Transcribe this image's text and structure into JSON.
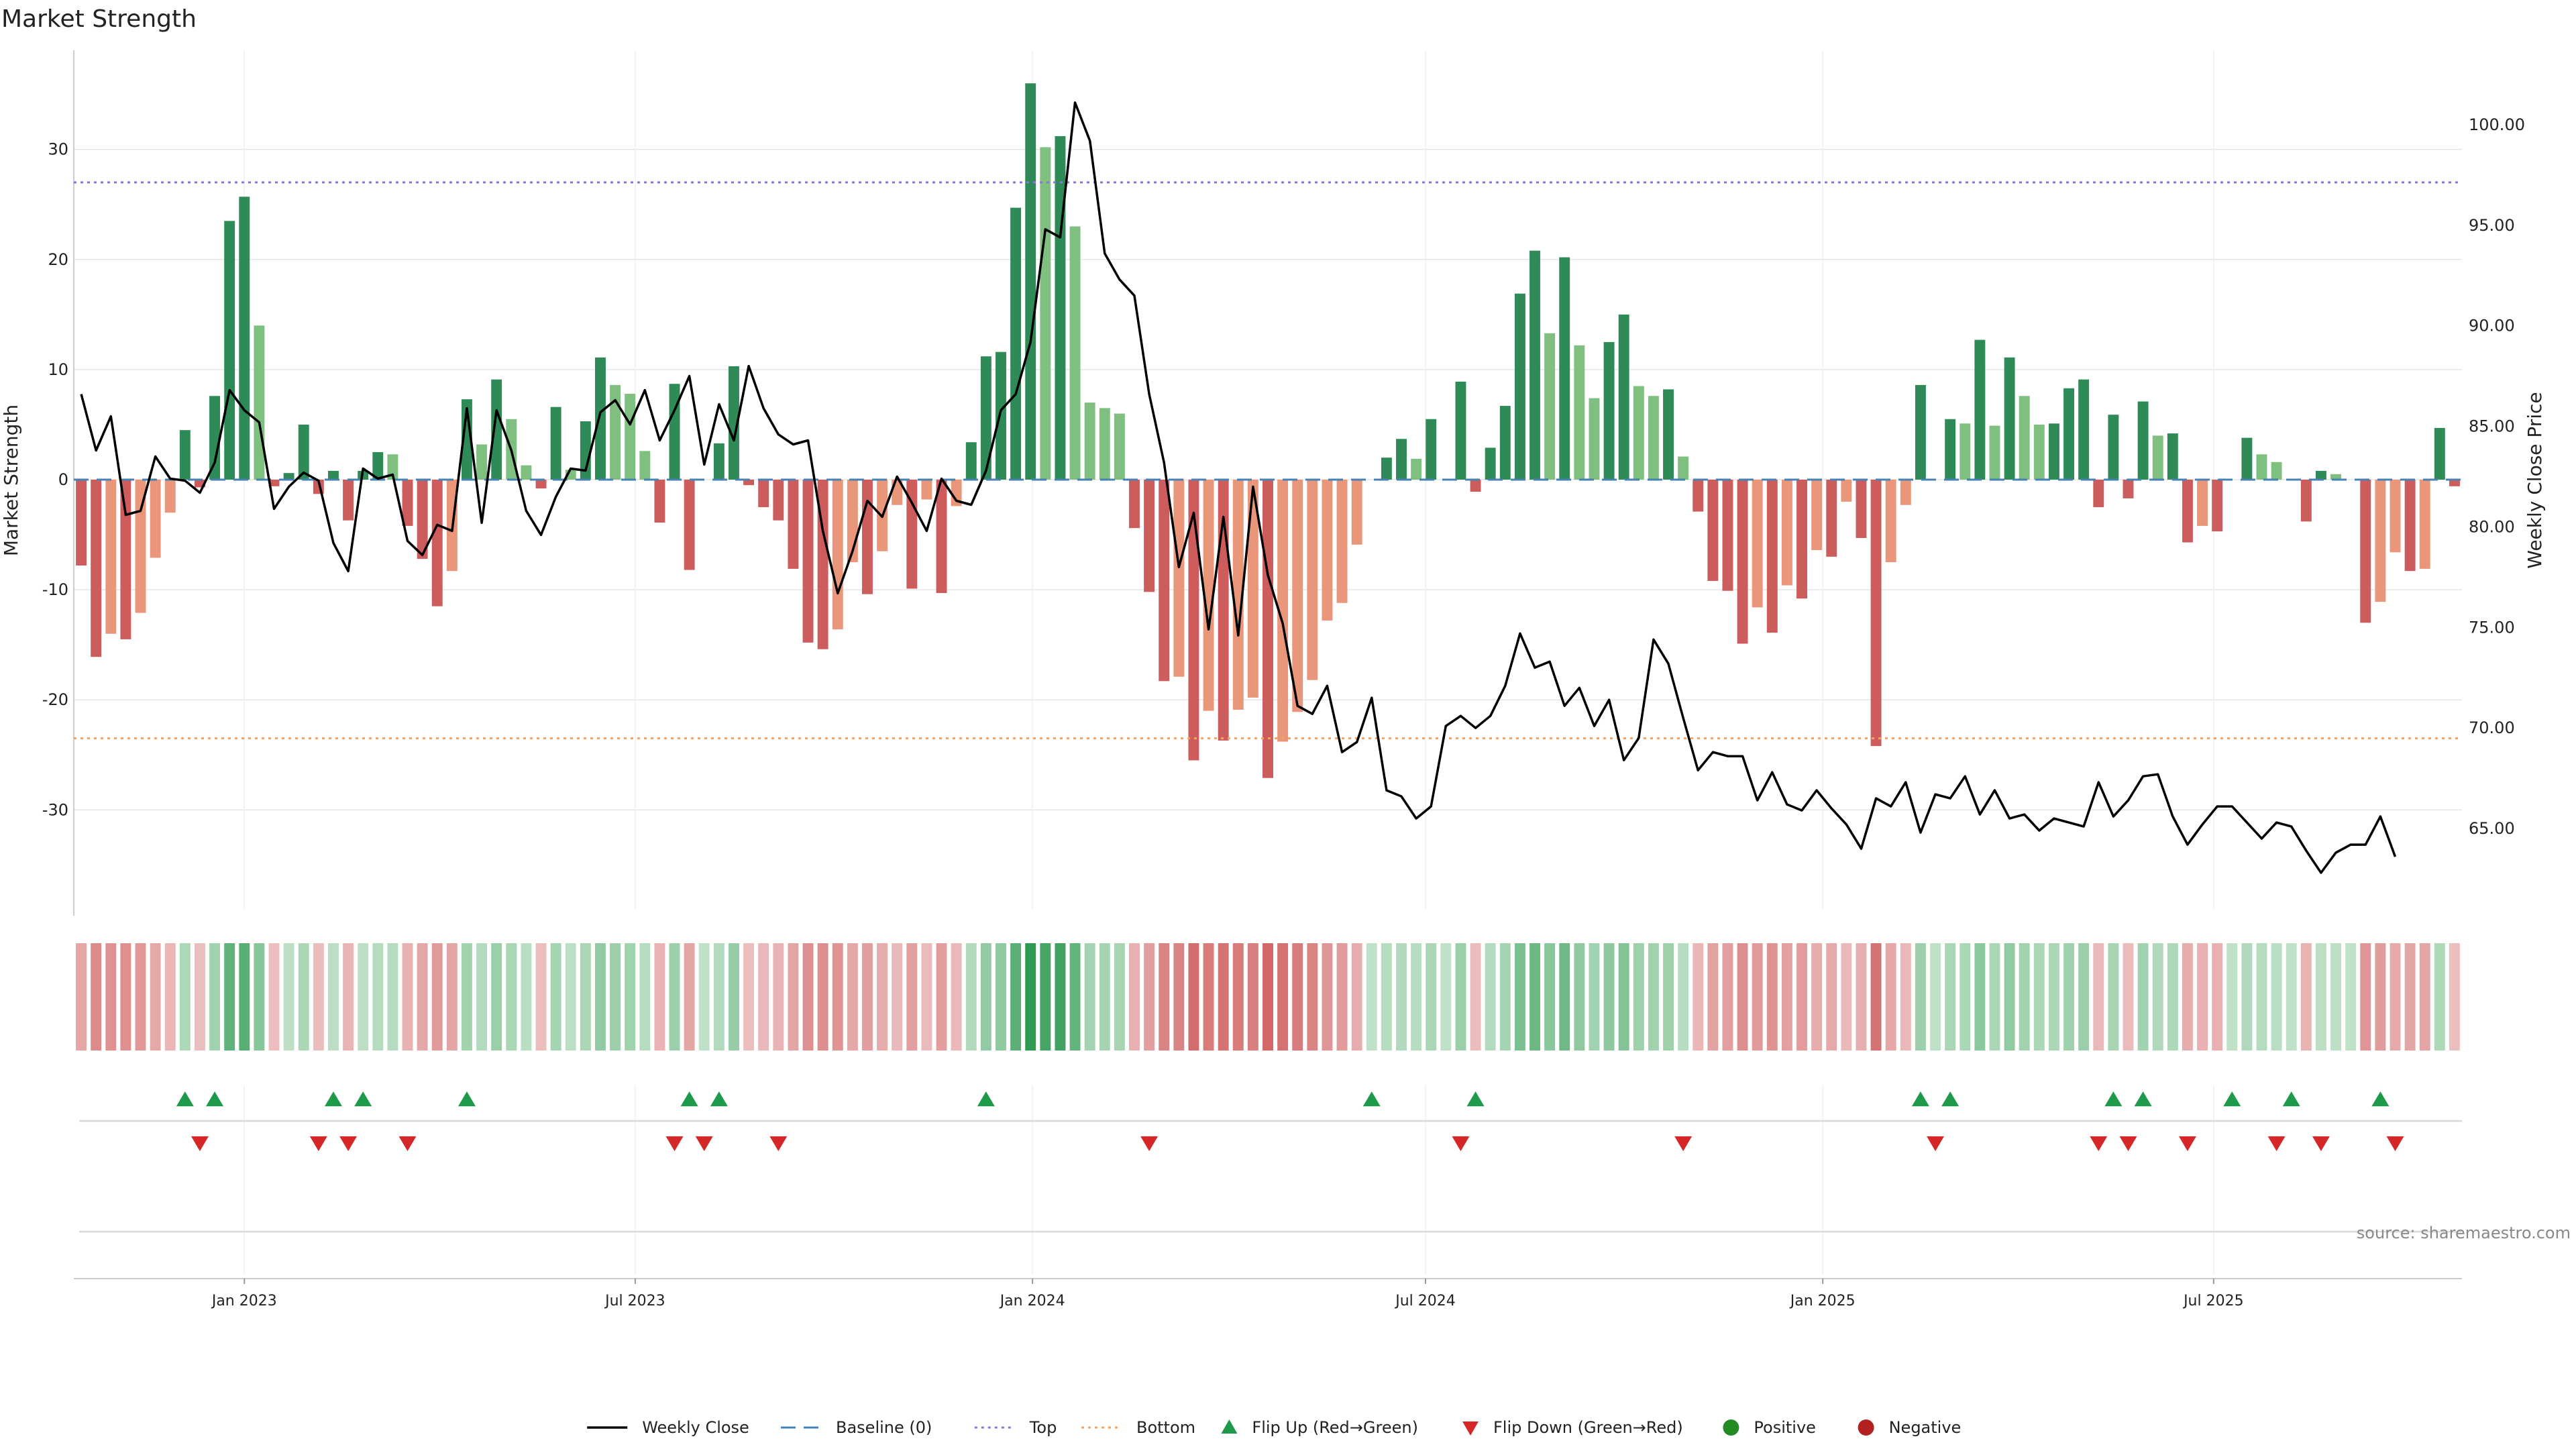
{
  "chart_data": {
    "type": "bar",
    "title": "Market Strength",
    "ylabel_left": "Market Strength",
    "ylabel_right": "Weekly Close Price",
    "source": "source: sharemaestro.com",
    "left_ylim": [
      -39,
      39
    ],
    "left_yticks": [
      -30,
      -20,
      -10,
      0,
      10,
      20,
      30
    ],
    "right_ylim": [
      61.0,
      103.7
    ],
    "right_yticks": [
      "65.00",
      "70.00",
      "75.00",
      "80.00",
      "85.00",
      "90.00",
      "95.00",
      "100.00"
    ],
    "top_threshold": 27,
    "bottom_threshold": -23.5,
    "x_start": "2022-10-14",
    "x_end": "2025-10-24",
    "x_ticks": [
      {
        "label": "Jan 2023",
        "date": "2023-01-01"
      },
      {
        "label": "Jul 2023",
        "date": "2023-07-01"
      },
      {
        "label": "Jan 2024",
        "date": "2024-01-01"
      },
      {
        "label": "Jul 2024",
        "date": "2024-07-01"
      },
      {
        "label": "Jan 2025",
        "date": "2025-01-01"
      },
      {
        "label": "Jul 2025",
        "date": "2025-07-01"
      }
    ],
    "strength": [
      -7.8,
      -16.1,
      -14,
      -14.5,
      -12.1,
      -7.1,
      -3,
      4.5,
      -0.7,
      7.6,
      23.5,
      25.7,
      14,
      -0.6,
      0.6,
      5,
      -1.3,
      0.8,
      -3.7,
      0.8,
      2.5,
      2.3,
      -4.2,
      -7.2,
      -11.5,
      -8.3,
      7.3,
      3.2,
      9.1,
      5.5,
      1.3,
      -0.8,
      6.6,
      0.9,
      5.3,
      11.1,
      8.6,
      7.8,
      2.6,
      -3.9,
      8.7,
      -8.2,
      0,
      3.3,
      10.3,
      -0.5,
      -2.5,
      -3.7,
      -8.1,
      -14.8,
      -15.4,
      -13.6,
      -7.5,
      -10.4,
      -6.5,
      -2.3,
      -9.9,
      -1.8,
      -10.3,
      -2.4,
      3.4,
      11.2,
      11.6,
      24.7,
      36,
      30.2,
      31.2,
      23,
      7,
      6.5,
      6,
      -4.4,
      -10.2,
      -18.3,
      -17.9,
      -25.5,
      -21,
      -23.7,
      -20.9,
      -19.8,
      -27.1,
      -23.8,
      -21.1,
      -18.2,
      -12.8,
      -11.2,
      -5.9,
      0,
      2,
      3.7,
      1.9,
      5.5,
      0,
      8.9,
      -1.1,
      2.9,
      6.7,
      16.9,
      20.8,
      13.3,
      20.2,
      12.2,
      7.4,
      12.5,
      15,
      8.5,
      7.6,
      8.2,
      2.1,
      -2.9,
      -9.2,
      -10.1,
      -14.9,
      -11.6,
      -13.9,
      -9.6,
      -10.8,
      -6.4,
      -7,
      -2,
      -5.3,
      -24.2,
      -7.5,
      -2.3,
      8.6,
      0,
      5.5,
      5.1,
      12.7,
      4.9,
      11.1,
      7.6,
      5,
      5.1,
      8.3,
      9.1,
      -2.5,
      5.9,
      -1.7,
      7.1,
      4,
      4.2,
      -5.7,
      -4.2,
      -4.7,
      0,
      3.8,
      2.3,
      1.6,
      0,
      -3.8,
      0.8,
      0.5,
      0,
      -13,
      -11.1,
      -6.6,
      -8.3,
      -8.1,
      4.7,
      -0.6
    ],
    "weekly_close": [
      86.6,
      83.8,
      85.5,
      80.6,
      80.8,
      83.5,
      82.4,
      82.3,
      81.7,
      83.2,
      86.8,
      85.8,
      85.2,
      80.9,
      82,
      82.7,
      82.3,
      79.2,
      77.8,
      82.9,
      82.4,
      82.6,
      79.3,
      78.6,
      80.1,
      79.8,
      85.9,
      80.2,
      85.8,
      83.8,
      80.8,
      79.6,
      81.5,
      82.9,
      82.8,
      85.7,
      86.3,
      85.1,
      86.8,
      84.3,
      85.8,
      87.5,
      83.1,
      86.1,
      84.3,
      88.0,
      85.9,
      84.6,
      84.1,
      84.3,
      79.8,
      76.7,
      78.8,
      81.3,
      80.5,
      82.5,
      81.2,
      79.8,
      82.4,
      81.3,
      81.1,
      82.8,
      85.8,
      86.6,
      89.2,
      94.8,
      94.4,
      101.1,
      99.2,
      93.6,
      92.3,
      91.5,
      86.6,
      83.2,
      78.0,
      80.7,
      74.9,
      80.5,
      74.6,
      82.0,
      77.6,
      75.2,
      71.1,
      70.7,
      72.1,
      68.8,
      69.3,
      71.5,
      66.9,
      66.6,
      65.5,
      66.1,
      70.1,
      70.6,
      70.0,
      70.6,
      72.1,
      74.7,
      73.0,
      73.3,
      71.1,
      72.0,
      70.1,
      71.4,
      68.4,
      69.5,
      74.4,
      73.2,
      70.5,
      67.9,
      68.8,
      68.6,
      68.6,
      66.4,
      67.8,
      66.2,
      65.9,
      66.9,
      66.0,
      65.2,
      64.0,
      66.5,
      66.1,
      67.3,
      64.8,
      66.7,
      66.5,
      67.6,
      65.7,
      66.9,
      65.5,
      65.7,
      64.9,
      65.5,
      65.3,
      65.1,
      67.3,
      65.6,
      66.4,
      67.6,
      67.7,
      65.6,
      64.2,
      65.2,
      66.1,
      66.1,
      65.3,
      64.5,
      65.3,
      65.1,
      63.9,
      62.8,
      63.8,
      64.2,
      64.2,
      65.6,
      63.6
    ],
    "flip_up_indices": [
      7,
      9,
      17,
      19,
      26,
      41,
      43,
      61,
      87,
      94,
      124,
      126,
      137,
      139,
      145,
      149,
      155
    ],
    "flip_down_indices": [
      8,
      16,
      18,
      22,
      40,
      42,
      47,
      72,
      93,
      108,
      125,
      136,
      138,
      142,
      148,
      151,
      156
    ],
    "legend": [
      {
        "key": "weekly_close",
        "label": "Weekly Close"
      },
      {
        "key": "baseline",
        "label": "Baseline (0)"
      },
      {
        "key": "top",
        "label": "Top"
      },
      {
        "key": "bottom",
        "label": "Bottom"
      },
      {
        "key": "flip_up",
        "label": "Flip Up (Red→Green)"
      },
      {
        "key": "flip_down",
        "label": "Flip Down (Green→Red)"
      },
      {
        "key": "positive",
        "label": "Positive"
      },
      {
        "key": "negative",
        "label": "Negative"
      }
    ],
    "colors": {
      "green_dark": "#2e8b57",
      "green_light": "#7fbf7f",
      "red_dark": "#cd5c5c",
      "red_light": "#e9967a",
      "price_line": "#000000",
      "baseline": "#4682b4",
      "top_line": "#9370db",
      "bottom_line": "#f4a460",
      "flip_up": "#1e9a4a",
      "flip_down": "#d62728",
      "positive": "#228b22",
      "negative": "#b22222",
      "grid": "#e6e6e6"
    }
  }
}
